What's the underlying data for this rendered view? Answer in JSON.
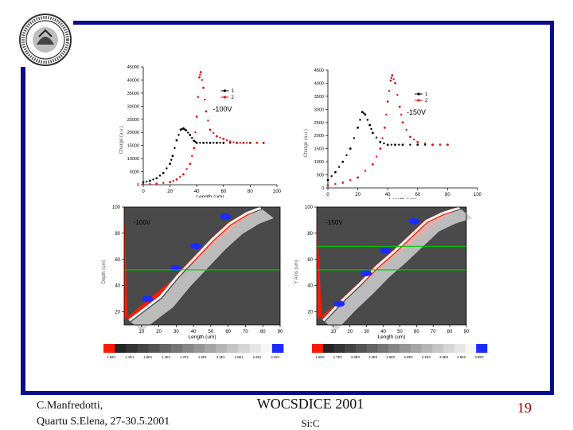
{
  "footer": {
    "author": "C.Manfredotti,",
    "venue": "Quartu S.Elena, 27-30.5.2001",
    "conference": "WOCSDICE 2001",
    "topic": "Si:C",
    "page": "19"
  },
  "colors": {
    "frame": "#0a0a8c",
    "page_number": "#b00000",
    "series1": "#000000",
    "series2": "#e01010",
    "map_red": "#ff1a00",
    "map_line": "#00cc00",
    "hotspot": "#1a2cff"
  },
  "chart_data": [
    {
      "type": "line",
      "annotation": "-100V",
      "xlabel": "Length (um)",
      "ylabel": "Charge (a.u.)",
      "xlim": [
        0,
        100
      ],
      "ylim": [
        0,
        45000
      ],
      "xticks": [
        "0",
        "20",
        "40",
        "60",
        "80",
        "100"
      ],
      "yticks": [
        "0",
        "5000",
        "10000",
        "15000",
        "20000",
        "25000",
        "30000",
        "35000",
        "40000",
        "45000"
      ],
      "legend": [
        "1",
        "2"
      ],
      "series": [
        {
          "name": "1",
          "x": [
            0,
            5,
            10,
            15,
            20,
            22,
            25,
            28,
            30,
            32,
            35,
            38,
            40,
            45,
            50,
            55,
            60,
            70,
            80,
            90
          ],
          "y": [
            900,
            1500,
            2500,
            4500,
            8000,
            11000,
            17000,
            21000,
            21500,
            20800,
            19000,
            16800,
            16000,
            16000,
            16000,
            16000,
            16000,
            16000,
            16000,
            16000
          ]
        },
        {
          "name": "2",
          "x": [
            0,
            10,
            20,
            25,
            30,
            35,
            38,
            40,
            42,
            43,
            45,
            47,
            50,
            55,
            60,
            65,
            70,
            75,
            80,
            90
          ],
          "y": [
            200,
            400,
            1000,
            2000,
            4000,
            8000,
            14000,
            26000,
            41000,
            43000,
            37000,
            28000,
            21000,
            18500,
            17500,
            16500,
            16000,
            16000,
            16000,
            16000
          ]
        }
      ]
    },
    {
      "type": "line",
      "annotation": "-150V",
      "xlabel": "Length (um)",
      "ylabel": "Charge (a.u.)",
      "xlim": [
        0,
        100
      ],
      "ylim": [
        0,
        4500
      ],
      "xticks": [
        "0",
        "20",
        "40",
        "60",
        "80",
        "100"
      ],
      "yticks": [
        "0",
        "500",
        "1000",
        "1500",
        "2000",
        "2500",
        "3000",
        "3500",
        "4000",
        "4500"
      ],
      "legend": [
        "1",
        "2"
      ],
      "series": [
        {
          "name": "1",
          "x": [
            0,
            5,
            10,
            15,
            20,
            23,
            25,
            28,
            30,
            35,
            40,
            45,
            50,
            60,
            70,
            80
          ],
          "y": [
            300,
            600,
            1000,
            1500,
            2300,
            2900,
            2800,
            2400,
            2100,
            1750,
            1650,
            1650,
            1650,
            1650,
            1650,
            1650
          ]
        },
        {
          "name": "2",
          "x": [
            0,
            10,
            20,
            30,
            35,
            38,
            40,
            42,
            43,
            45,
            48,
            50,
            55,
            60,
            70,
            80
          ],
          "y": [
            100,
            200,
            400,
            900,
            1500,
            2300,
            3300,
            4100,
            4300,
            4000,
            3100,
            2500,
            1950,
            1750,
            1650,
            1650
          ]
        }
      ]
    },
    {
      "type": "heatmap",
      "annotation": "-100V",
      "xlabel": "Length (um)",
      "ylabel": "Depth (um)",
      "xlim": [
        0,
        90
      ],
      "ylim": [
        10,
        100
      ],
      "xticks": [
        "10",
        "20",
        "30",
        "40",
        "50",
        "60",
        "70",
        "80",
        "90"
      ],
      "yticks": [
        "20",
        "40",
        "60",
        "80",
        "100"
      ],
      "colorbar_labels": [
        "1.5E1",
        "1.1E1",
        "1.6E1",
        "1.4E1",
        "1.7E1",
        "1.9E1",
        "2.2E1",
        "2.5E1",
        "2.2E1",
        "2.2E1"
      ],
      "boundary": {
        "x": [
          2,
          10,
          20,
          30,
          40,
          50,
          60,
          70,
          78
        ],
        "y": [
          14,
          22,
          32,
          48,
          62,
          76,
          88,
          96,
          100
        ]
      },
      "cursor_line_y": 52
    },
    {
      "type": "heatmap",
      "annotation": "-150V",
      "xlabel": "Length (um)",
      "ylabel": "Y Axis (um)",
      "xlim": [
        0,
        90
      ],
      "ylim": [
        10,
        100
      ],
      "xticks": [
        "10",
        "20",
        "30",
        "40",
        "50",
        "60",
        "70",
        "80",
        "90"
      ],
      "yticks": [
        "20",
        "40",
        "60",
        "80",
        "100"
      ],
      "colorbar_labels": [
        "1.5E0",
        "1.7E0",
        "2.0E0",
        "2.3E0",
        "2.5E0",
        "2.8E0",
        "3.1E0",
        "3.3E0",
        "3.6E0",
        "3.9E0"
      ],
      "boundary": {
        "x": [
          3,
          15,
          25,
          35,
          45,
          55,
          65,
          75,
          85
        ],
        "y": [
          14,
          30,
          42,
          55,
          66,
          78,
          90,
          96,
          100
        ]
      },
      "cursor_lines_y": [
        70,
        52
      ]
    }
  ]
}
